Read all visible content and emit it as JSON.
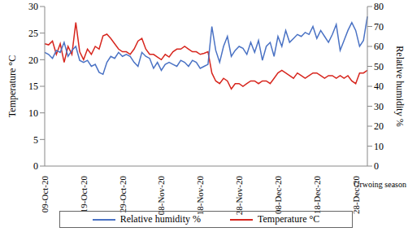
{
  "chart_data": {
    "type": "line",
    "x_label": "Grwoing season",
    "y_label": "Temperature °C",
    "y2_label": "Relative humidity %",
    "categories": [
      "09-Oct-20",
      null,
      null,
      null,
      null,
      null,
      null,
      null,
      null,
      null,
      "19-Oct-20",
      null,
      null,
      null,
      null,
      null,
      null,
      null,
      null,
      null,
      "29-Oct-20",
      null,
      null,
      null,
      null,
      null,
      null,
      null,
      null,
      null,
      "08-Nov-20",
      null,
      null,
      null,
      null,
      null,
      null,
      null,
      null,
      null,
      "18-Nov-20",
      null,
      null,
      null,
      null,
      null,
      null,
      null,
      null,
      null,
      "28-Nov-20",
      null,
      null,
      null,
      null,
      null,
      null,
      null,
      null,
      null,
      "08-Dec-20",
      null,
      null,
      null,
      null,
      null,
      null,
      null,
      null,
      null,
      "18-Dec-20",
      null,
      null,
      null,
      null,
      null,
      null,
      null,
      null,
      null,
      "28-Dec-20",
      null,
      null,
      null
    ],
    "series": [
      {
        "name": "Temperature °C",
        "color": "#d7261e",
        "values": [
          23,
          22.8,
          23.5,
          21,
          23,
          19.5,
          22.5,
          21,
          27,
          21.5,
          20,
          22,
          21,
          22.5,
          22,
          24.5,
          24.8,
          24,
          23,
          22,
          21.5,
          21.5,
          21,
          22,
          23.5,
          24,
          22,
          21,
          21,
          20.5,
          20,
          21,
          20.5,
          21.5,
          22,
          22,
          22.5,
          22,
          21.5,
          21.5,
          21,
          21.2,
          21.5,
          17.5,
          16,
          15.5,
          16.5,
          16,
          14.5,
          15.5,
          15.5,
          15,
          15.5,
          16,
          16,
          15.5,
          16,
          16,
          15.5,
          16.5,
          17.5,
          18,
          17.5,
          17,
          16.5,
          17.5,
          17,
          16.5,
          17,
          17.5,
          17.5,
          17,
          16.5,
          17,
          17,
          16.5,
          17,
          16.5,
          17,
          16,
          15.5,
          17.5,
          17.5,
          18
        ]
      },
      {
        "name": "Relative humidity %",
        "color": "#4a72c4",
        "axis": "y2",
        "values": [
          57,
          56,
          54,
          58,
          57,
          62,
          55,
          58,
          60,
          53,
          52,
          53,
          50,
          51,
          47,
          46,
          52,
          55,
          54,
          57,
          55,
          56,
          55,
          52,
          50,
          57,
          55,
          54,
          49,
          52,
          48,
          51,
          52,
          51,
          50,
          53,
          52,
          50,
          53,
          52,
          49,
          50,
          51,
          70,
          58,
          52,
          60,
          65,
          55,
          58,
          60,
          59,
          56,
          62,
          57,
          63,
          53,
          60,
          62,
          55,
          65,
          60,
          68,
          62,
          64,
          66,
          65,
          67,
          66,
          70,
          64,
          68,
          65,
          62,
          66,
          71,
          58,
          63,
          68,
          72,
          68,
          60,
          63,
          75
        ]
      }
    ],
    "ylim": [
      0,
      30
    ],
    "yticks": [
      0,
      5,
      10,
      15,
      20,
      25,
      30
    ],
    "y2lim": [
      0,
      80
    ],
    "y2ticks": [
      0,
      10,
      20,
      30,
      40,
      50,
      60,
      70,
      80
    ],
    "legend": "bottom"
  }
}
